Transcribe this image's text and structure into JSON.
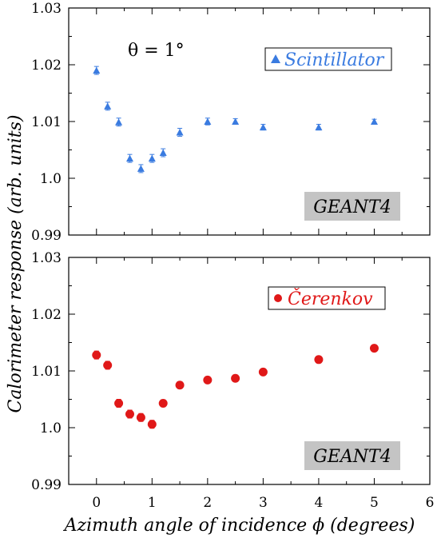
{
  "chart_data": [
    {
      "type": "scatter",
      "panel": "top",
      "xlim": [
        -0.5,
        6
      ],
      "ylim": [
        0.99,
        1.03
      ],
      "y_ticks": [
        "0.99",
        "1.0",
        "1.01",
        "1.02",
        "1.03"
      ],
      "annotation": "θ = 1°",
      "badge": "GEANT4",
      "series": [
        {
          "name": "Scintillator",
          "color": "#3a7be0",
          "marker": "triangle",
          "x": [
            0,
            0.2,
            0.4,
            0.6,
            0.8,
            1.0,
            1.2,
            1.5,
            2.0,
            2.5,
            3.0,
            4.0,
            5.0
          ],
          "y": [
            1.019,
            1.0127,
            1.0099,
            1.0035,
            1.0017,
            1.0035,
            1.0045,
            1.0081,
            1.01,
            1.01,
            1.009,
            1.009,
            1.01
          ],
          "yerr": [
            0.0007,
            0.0007,
            0.0007,
            0.0007,
            0.0007,
            0.0007,
            0.0007,
            0.0007,
            0.0006,
            0.0005,
            0.0005,
            0.0005,
            0.0004
          ]
        }
      ]
    },
    {
      "type": "scatter",
      "panel": "bottom",
      "xlim": [
        -0.5,
        6
      ],
      "ylim": [
        0.99,
        1.03
      ],
      "y_ticks": [
        "0.99",
        "1.0",
        "1.01",
        "1.02",
        "1.03"
      ],
      "x_ticks": [
        "0",
        "1",
        "2",
        "3",
        "4",
        "5",
        "6"
      ],
      "badge": "GEANT4",
      "series": [
        {
          "name": "Čerenkov",
          "color": "#e01818",
          "marker": "circle",
          "x": [
            0,
            0.2,
            0.4,
            0.6,
            0.8,
            1.0,
            1.2,
            1.5,
            2.0,
            2.5,
            3.0,
            4.0,
            5.0
          ],
          "y": [
            1.0128,
            1.011,
            1.0043,
            1.0024,
            1.0018,
            1.0006,
            1.0043,
            1.0075,
            1.0084,
            1.0087,
            1.0098,
            1.012,
            1.014
          ],
          "yerr": [
            0.0007,
            0.0007,
            0.0007,
            0.0007,
            0.0007,
            0.0007,
            0.0006,
            0.0006,
            0.0005,
            0.0005,
            0.0004,
            0.0004,
            0.0004
          ]
        }
      ]
    }
  ],
  "axes": {
    "ylabel": "Calorimeter response (arb. units)",
    "xlabel": "Azimuth angle of incidence ϕ (degrees)"
  }
}
